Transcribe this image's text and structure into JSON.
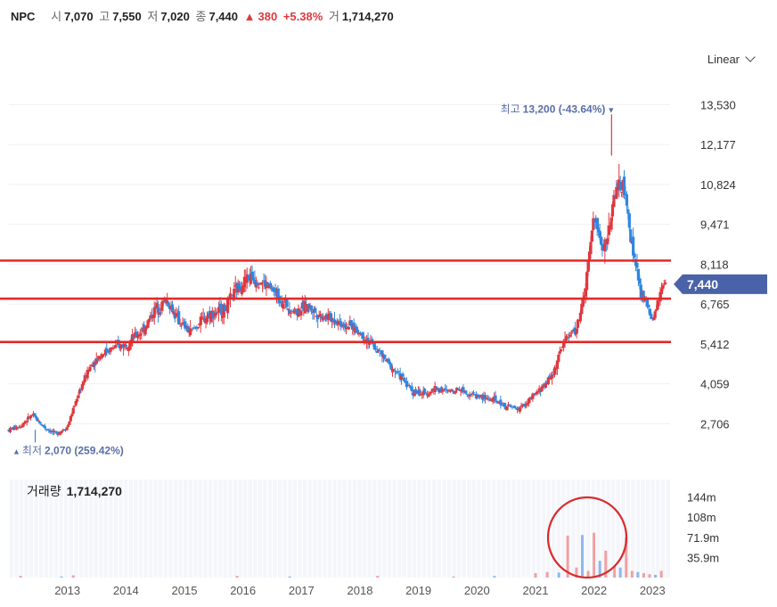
{
  "header": {
    "ticker": "NPC",
    "open_label": "시",
    "open": "7,070",
    "high_label": "고",
    "high": "7,550",
    "low_label": "저",
    "low": "7,020",
    "close_label": "종",
    "close": "7,440",
    "change_arrow": "▲",
    "change": "380",
    "change_pct": "+5.38%",
    "volume_label": "거",
    "volume": "1,714,270"
  },
  "scale_select": {
    "value": "Linear"
  },
  "colors": {
    "up": "#e0383e",
    "down": "#2f86e0",
    "line": "#e02a2a",
    "badge": "#4a62a8",
    "circle": "#d92b2b"
  },
  "chart_data": {
    "type": "candlestick",
    "x_tick_labels": [
      "2013",
      "2014",
      "2015",
      "2016",
      "2017",
      "2018",
      "2019",
      "2020",
      "2021",
      "2022",
      "2023"
    ],
    "y_tick_labels": [
      "13,530",
      "12,177",
      "10,824",
      "9,471",
      "8,118",
      "6,765",
      "5,412",
      "4,059",
      "2,706"
    ],
    "y_ticks": [
      13530,
      12177,
      10824,
      9471,
      8118,
      6765,
      5412,
      4059,
      2706
    ],
    "ylim": [
      1600,
      14600
    ],
    "current_price": 7440,
    "current_price_label": "7,440",
    "high_marker": {
      "label": "최고",
      "value_text": "13,200 (-43.64%)",
      "value": 13200,
      "date": 2022.3
    },
    "low_marker": {
      "label": "최저",
      "value_text": "2,070 (259.42%)",
      "value": 2070,
      "date": 2012.45
    },
    "horizontal_lines": [
      8240,
      6950,
      5480
    ],
    "price_series": [
      [
        2012.0,
        2500
      ],
      [
        2012.2,
        2650
      ],
      [
        2012.4,
        3000
      ],
      [
        2012.6,
        2600
      ],
      [
        2012.8,
        2350
      ],
      [
        2013.0,
        2600
      ],
      [
        2013.2,
        3800
      ],
      [
        2013.4,
        4700
      ],
      [
        2013.6,
        5100
      ],
      [
        2013.8,
        5300
      ],
      [
        2014.0,
        5400
      ],
      [
        2014.3,
        5900
      ],
      [
        2014.5,
        6600
      ],
      [
        2014.7,
        6900
      ],
      [
        2014.9,
        6200
      ],
      [
        2015.1,
        5800
      ],
      [
        2015.4,
        6400
      ],
      [
        2015.7,
        6600
      ],
      [
        2015.9,
        7300
      ],
      [
        2016.1,
        7700
      ],
      [
        2016.3,
        7550
      ],
      [
        2016.5,
        7250
      ],
      [
        2016.7,
        6800
      ],
      [
        2016.9,
        6500
      ],
      [
        2017.1,
        6700
      ],
      [
        2017.3,
        6400
      ],
      [
        2017.5,
        6300
      ],
      [
        2017.7,
        6100
      ],
      [
        2017.9,
        5950
      ],
      [
        2018.1,
        5600
      ],
      [
        2018.3,
        5200
      ],
      [
        2018.5,
        4700
      ],
      [
        2018.7,
        4300
      ],
      [
        2018.9,
        3800
      ],
      [
        2019.1,
        3700
      ],
      [
        2019.3,
        3900
      ],
      [
        2019.5,
        3800
      ],
      [
        2019.7,
        3900
      ],
      [
        2019.9,
        3700
      ],
      [
        2020.1,
        3600
      ],
      [
        2020.3,
        3500
      ],
      [
        2020.5,
        3300
      ],
      [
        2020.7,
        3200
      ],
      [
        2020.9,
        3500
      ],
      [
        2021.1,
        3900
      ],
      [
        2021.3,
        4400
      ],
      [
        2021.5,
        5600
      ],
      [
        2021.7,
        5900
      ],
      [
        2021.85,
        7200
      ],
      [
        2022.0,
        9800
      ],
      [
        2022.1,
        8900
      ],
      [
        2022.2,
        8700
      ],
      [
        2022.35,
        10500
      ],
      [
        2022.5,
        10800
      ],
      [
        2022.65,
        8800
      ],
      [
        2022.8,
        7100
      ],
      [
        2022.9,
        6800
      ],
      [
        2023.0,
        6100
      ],
      [
        2023.1,
        6900
      ],
      [
        2023.2,
        7440
      ]
    ],
    "volume_label": "거래량",
    "volume_value": "1,714,270",
    "volume_tick_labels": [
      "144m",
      "108m",
      "71.9m",
      "35.9m"
    ],
    "volume_ticks": [
      144,
      108,
      71.9,
      35.9
    ],
    "volume_max": 175,
    "volume_bars": [
      [
        2012.2,
        3
      ],
      [
        2012.9,
        2
      ],
      [
        2013.1,
        4
      ],
      [
        2015.9,
        3
      ],
      [
        2016.8,
        2
      ],
      [
        2018.3,
        3
      ],
      [
        2019.6,
        2
      ],
      [
        2020.3,
        3
      ],
      [
        2021.0,
        8
      ],
      [
        2021.2,
        10
      ],
      [
        2021.4,
        9
      ],
      [
        2021.55,
        75
      ],
      [
        2021.7,
        18
      ],
      [
        2021.8,
        76
      ],
      [
        2021.9,
        12
      ],
      [
        2022.0,
        80
      ],
      [
        2022.1,
        30
      ],
      [
        2022.2,
        48
      ],
      [
        2022.35,
        20
      ],
      [
        2022.45,
        18
      ],
      [
        2022.55,
        72
      ],
      [
        2022.65,
        12
      ],
      [
        2022.75,
        10
      ],
      [
        2022.85,
        8
      ],
      [
        2022.95,
        6
      ],
      [
        2023.05,
        5
      ],
      [
        2023.15,
        12
      ]
    ]
  }
}
